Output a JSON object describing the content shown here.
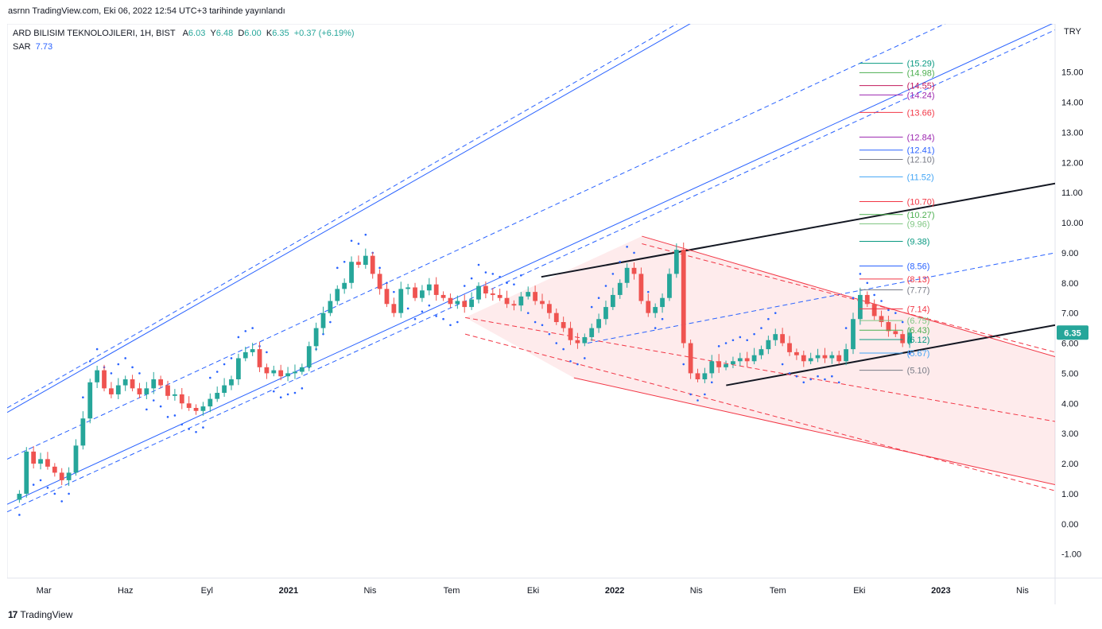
{
  "header": {
    "published": "asrnn TradingView.com, Eki 06, 2022 12:54 UTC+3 tarihinde yayınlandı"
  },
  "legend": {
    "symbol": "ARD BILISIM TEKNOLOJILERI, 1H, BIST",
    "o_label": "A",
    "o_val": "6.03",
    "h_label": "Y",
    "h_val": "6.48",
    "l_label": "D",
    "l_val": "6.00",
    "c_label": "K",
    "c_val": "6.35",
    "change": "+0.37 (+6.19%)",
    "sar_label": "SAR",
    "sar_val": "7.73"
  },
  "footer": {
    "brand": "TradingView",
    "logo": "17"
  },
  "colors": {
    "up": "#26a69a",
    "down": "#ef5350",
    "channel": "#2962ff",
    "redchannel": "#f23645",
    "sar": "#2962ff",
    "trend": "#131722",
    "price_tag": "#26a69a"
  },
  "chart_data": {
    "type": "candlestick",
    "currency": "TRY",
    "last_price": "6.35",
    "y_ticks": [
      "15.00",
      "14.00",
      "13.00",
      "12.00",
      "11.00",
      "10.00",
      "9.00",
      "8.00",
      "7.00",
      "6.00",
      "5.00",
      "4.00",
      "3.00",
      "2.00",
      "1.00",
      "0.00",
      "-1.00"
    ],
    "ylim": [
      -1.8,
      16.6
    ],
    "x_ticks": [
      {
        "label": "Mar",
        "t": 1.0,
        "bold": false
      },
      {
        "label": "Haz",
        "t": 4.0,
        "bold": false
      },
      {
        "label": "Eyl",
        "t": 7.0,
        "bold": false
      },
      {
        "label": "2021",
        "t": 10.0,
        "bold": true
      },
      {
        "label": "Nis",
        "t": 13.0,
        "bold": false
      },
      {
        "label": "Tem",
        "t": 16.0,
        "bold": false
      },
      {
        "label": "Eki",
        "t": 19.0,
        "bold": false
      },
      {
        "label": "2022",
        "t": 22.0,
        "bold": true
      },
      {
        "label": "Nis",
        "t": 25.0,
        "bold": false
      },
      {
        "label": "Tem",
        "t": 28.0,
        "bold": false
      },
      {
        "label": "Eki",
        "t": 31.0,
        "bold": false
      },
      {
        "label": "2023",
        "t": 34.0,
        "bold": true
      },
      {
        "label": "Nis",
        "t": 37.0,
        "bold": false
      }
    ],
    "xlim": [
      -0.35,
      38.2
    ],
    "closes": [
      1.0,
      2.4,
      2.0,
      2.15,
      1.9,
      1.7,
      1.45,
      1.7,
      2.6,
      3.5,
      4.7,
      5.1,
      4.5,
      4.3,
      4.6,
      4.8,
      4.5,
      4.3,
      4.5,
      4.8,
      4.6,
      4.25,
      4.3,
      4.0,
      3.85,
      3.75,
      3.9,
      4.15,
      4.35,
      4.6,
      4.8,
      5.5,
      5.7,
      5.8,
      5.2,
      5.0,
      5.1,
      4.9,
      5.0,
      5.05,
      5.2,
      5.9,
      6.5,
      7.0,
      7.4,
      7.8,
      8.0,
      8.7,
      8.6,
      8.9,
      8.3,
      7.8,
      7.3,
      7.0,
      7.8,
      7.85,
      7.5,
      7.75,
      7.95,
      7.6,
      7.5,
      7.3,
      7.4,
      7.2,
      7.45,
      7.9,
      7.65,
      7.6,
      7.5,
      7.3,
      7.25,
      7.55,
      7.7,
      7.4,
      7.3,
      7.0,
      6.7,
      6.5,
      6.1,
      6.0,
      6.2,
      6.5,
      6.8,
      7.2,
      7.6,
      8.0,
      8.5,
      8.3,
      7.4,
      7.0,
      7.2,
      7.5,
      8.3,
      9.1,
      6.0,
      5.0,
      4.8,
      5.0,
      5.4,
      5.2,
      5.3,
      5.4,
      5.5,
      5.4,
      5.6,
      5.8,
      6.1,
      6.3,
      6.0,
      5.7,
      5.6,
      5.4,
      5.5,
      5.6,
      5.5,
      5.6,
      5.4,
      5.8,
      6.8,
      7.6,
      7.3,
      6.9,
      6.7,
      6.4,
      6.3,
      6.0,
      6.35
    ],
    "trendlines": [
      {
        "name": "channel-upper",
        "p1": [
          -0.35,
          3.7
        ],
        "p2": [
          38.2,
          23.5
        ],
        "style": "solid",
        "color": "#2962ff"
      },
      {
        "name": "channel-upper-outer",
        "p1": [
          -0.35,
          3.85
        ],
        "p2": [
          38.2,
          23.8
        ],
        "style": "dashed",
        "color": "#2962ff"
      },
      {
        "name": "channel-mid",
        "p1": [
          -0.35,
          2.15
        ],
        "p2": [
          38.2,
          18.3
        ],
        "style": "dashed",
        "color": "#2962ff"
      },
      {
        "name": "channel-lower",
        "p1": [
          -0.35,
          0.65
        ],
        "p2": [
          38.2,
          16.65
        ],
        "style": "solid",
        "color": "#2962ff"
      },
      {
        "name": "channel-lower-outer",
        "p1": [
          -0.35,
          0.4
        ],
        "p2": [
          38.2,
          16.4
        ],
        "style": "dashed",
        "color": "#2962ff"
      },
      {
        "name": "mid-dashed-blue",
        "p1": [
          21.0,
          6.0
        ],
        "p2": [
          38.2,
          9.0
        ],
        "style": "dashed",
        "color": "#2962ff"
      },
      {
        "name": "black-upper",
        "p1": [
          19.3,
          8.2
        ],
        "p2": [
          38.2,
          11.3
        ],
        "style": "solid",
        "color": "#131722"
      },
      {
        "name": "black-lower",
        "p1": [
          26.1,
          4.6
        ],
        "p2": [
          38.2,
          6.6
        ],
        "style": "solid",
        "color": "#131722"
      },
      {
        "name": "red-top",
        "p1": [
          23.0,
          9.55
        ],
        "p2": [
          38.2,
          5.55
        ],
        "style": "solid",
        "color": "#f23645"
      },
      {
        "name": "red-top-dash",
        "p1": [
          23.0,
          9.3
        ],
        "p2": [
          38.2,
          5.7
        ],
        "style": "dashed",
        "color": "#f23645"
      },
      {
        "name": "red-mid",
        "p1": [
          16.5,
          6.85
        ],
        "p2": [
          38.2,
          3.4
        ],
        "style": "dashed",
        "color": "#f23645"
      },
      {
        "name": "red-bottom",
        "p1": [
          20.5,
          4.85
        ],
        "p2": [
          38.2,
          1.3
        ],
        "style": "solid",
        "color": "#f23645"
      },
      {
        "name": "red-bottom-dash",
        "p1": [
          16.5,
          6.3
        ],
        "p2": [
          38.2,
          1.1
        ],
        "style": "dashed",
        "color": "#f23645"
      }
    ],
    "level_labels": [
      {
        "text": "(15.29)",
        "value": 15.29,
        "color": "#089981"
      },
      {
        "text": "(14.98)",
        "value": 14.98,
        "color": "#4caf50"
      },
      {
        "text": "(14.55)",
        "value": 14.55,
        "color": "#c2185b"
      },
      {
        "text": "(14.24)",
        "value": 14.24,
        "color": "#9c27b0"
      },
      {
        "text": "(13.66)",
        "value": 13.66,
        "color": "#f23645"
      },
      {
        "text": "(12.84)",
        "value": 12.84,
        "color": "#9c27b0"
      },
      {
        "text": "(12.41)",
        "value": 12.41,
        "color": "#2962ff"
      },
      {
        "text": "(12.10)",
        "value": 12.1,
        "color": "#787b86"
      },
      {
        "text": "(11.52)",
        "value": 11.52,
        "color": "#42a5f5"
      },
      {
        "text": "(10.70)",
        "value": 10.7,
        "color": "#f23645"
      },
      {
        "text": "(10.27)",
        "value": 10.27,
        "color": "#4caf50"
      },
      {
        "text": "(9.96)",
        "value": 9.96,
        "color": "#81c784"
      },
      {
        "text": "(9.38)",
        "value": 9.38,
        "color": "#089981"
      },
      {
        "text": "(8.56)",
        "value": 8.56,
        "color": "#2962ff"
      },
      {
        "text": "(8.13)",
        "value": 8.13,
        "color": "#f23645"
      },
      {
        "text": "(7.77)",
        "value": 7.77,
        "color": "#787b86"
      },
      {
        "text": "(7.14)",
        "value": 7.14,
        "color": "#f23645"
      },
      {
        "text": "(6.75)",
        "value": 6.75,
        "color": "#81c784"
      },
      {
        "text": "(6.43)",
        "value": 6.43,
        "color": "#4caf50"
      },
      {
        "text": "(6.12)",
        "value": 6.12,
        "color": "#089981"
      },
      {
        "text": "(5.67)",
        "value": 5.67,
        "color": "#42a5f5"
      },
      {
        "text": "(5.10)",
        "value": 5.1,
        "color": "#787b86"
      }
    ]
  }
}
